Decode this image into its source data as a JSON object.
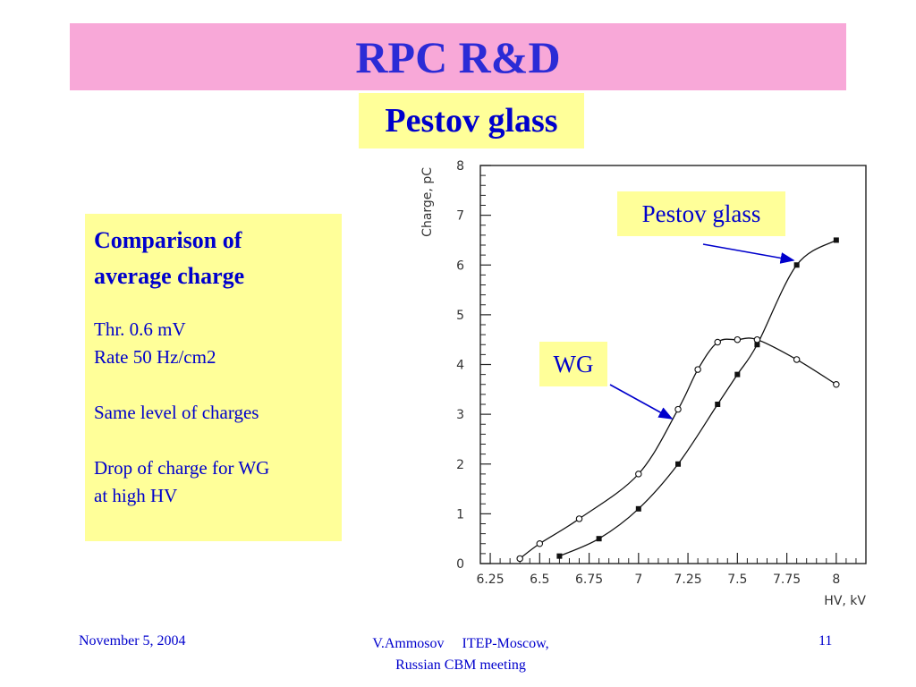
{
  "title": "RPC R&D",
  "subtitle": "Pestov glass",
  "info_box": {
    "heading_line1": "Comparison of",
    "heading_line2": "average charge",
    "lines_block1": [
      "Thr. 0.6 mV",
      "Rate 50 Hz/cm2"
    ],
    "lines_block2": [
      "Same level of charges"
    ],
    "lines_block3": [
      "Drop of charge for WG",
      "at high HV"
    ]
  },
  "callouts": {
    "pestov": "Pestov glass",
    "wg": "WG"
  },
  "footer": {
    "date": "November 5, 2004",
    "author_line1": "V.Ammosov     ITEP-Moscow,",
    "author_line2": "Russian CBM meeting",
    "page": "11"
  },
  "colors": {
    "title_bar": "#f8a8d8",
    "title_text": "#2b2bd6",
    "highlight_bg": "#ffff99",
    "body_text": "#0000cc"
  },
  "chart_data": {
    "type": "line",
    "xlabel": "HV, kV",
    "ylabel": "Charge, pC",
    "xlim": [
      6.2,
      8.15
    ],
    "ylim": [
      0,
      8
    ],
    "x_ticks": [
      6.25,
      6.5,
      6.75,
      7,
      7.25,
      7.5,
      7.75,
      8
    ],
    "x_tick_labels": [
      "6.25",
      "6.5",
      "6.75",
      "7",
      "7.25",
      "7.5",
      "7.75",
      "8"
    ],
    "y_ticks": [
      0,
      1,
      2,
      3,
      4,
      5,
      6,
      7,
      8
    ],
    "y_tick_labels": [
      "0",
      "1",
      "2",
      "3",
      "4",
      "5",
      "6",
      "7",
      "8"
    ],
    "grid": false,
    "series": [
      {
        "name": "Pestov glass",
        "marker": "filled",
        "x": [
          6.6,
          6.8,
          7.0,
          7.2,
          7.4,
          7.5,
          7.6,
          7.8,
          8.0
        ],
        "y": [
          0.15,
          0.5,
          1.1,
          2.0,
          3.2,
          3.8,
          4.4,
          6.0,
          6.5
        ]
      },
      {
        "name": "WG",
        "marker": "open",
        "x": [
          6.4,
          6.5,
          6.7,
          7.0,
          7.2,
          7.3,
          7.4,
          7.5,
          7.6,
          7.8,
          8.0
        ],
        "y": [
          0.1,
          0.4,
          0.9,
          1.8,
          3.1,
          3.9,
          4.45,
          4.5,
          4.5,
          4.1,
          3.6
        ]
      }
    ]
  }
}
